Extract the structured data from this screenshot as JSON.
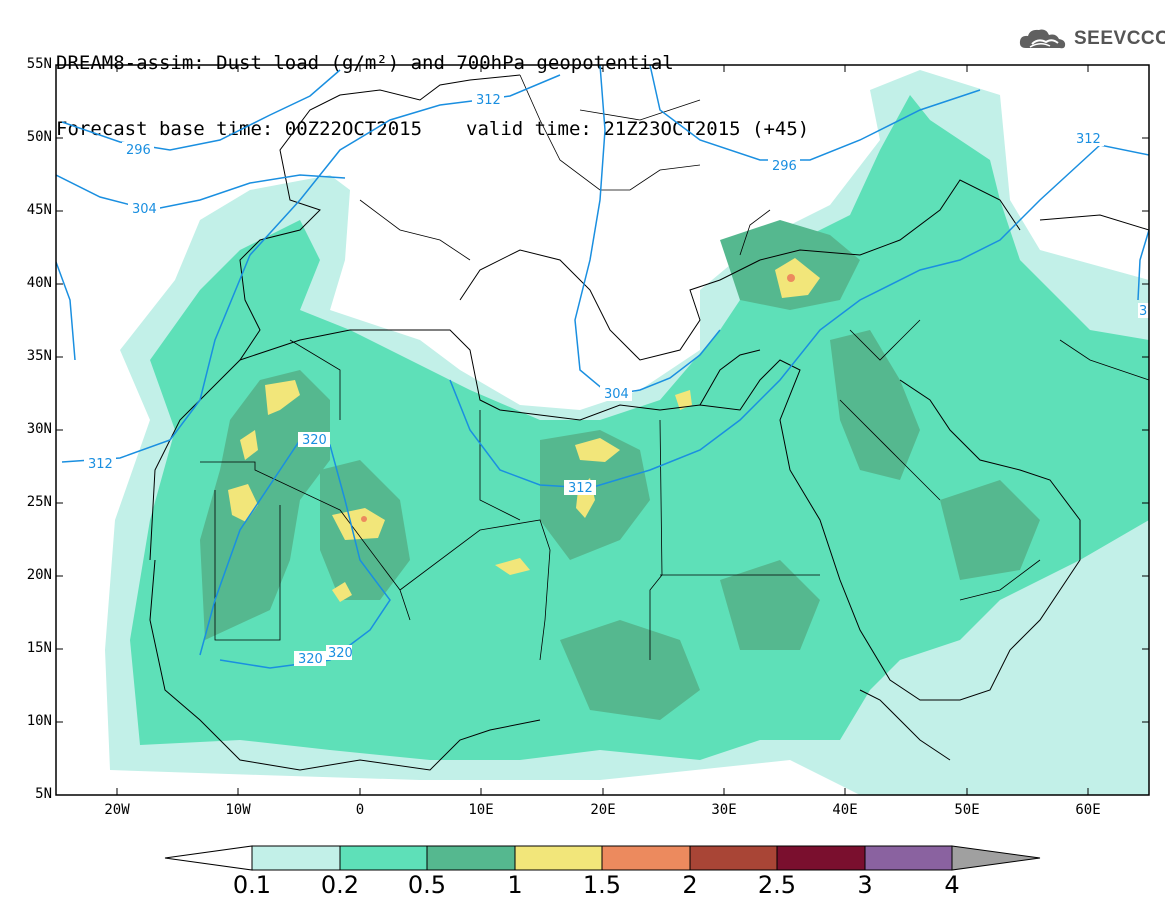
{
  "title": {
    "line1": "DREAM8-assim: Dust load (g/m²) and 700hPa geopotential",
    "base_time": "Forecast base time: 00Z22OCT2015",
    "valid_time": "valid time: 21Z23OCT2015 (+45)"
  },
  "logo": {
    "icon": "cloud-icon",
    "text": "SEEVCCC"
  },
  "map": {
    "lat_labels": [
      "55N",
      "50N",
      "45N",
      "40N",
      "35N",
      "30N",
      "25N",
      "20N",
      "15N",
      "10N",
      "5N"
    ],
    "lon_labels": [
      "20W",
      "10W",
      "0",
      "10E",
      "20E",
      "30E",
      "40E",
      "50E",
      "60E"
    ],
    "contour_labels": [
      "296",
      "304",
      "312",
      "320",
      "320",
      "320",
      "312",
      "304",
      "296",
      "312",
      "312",
      "3"
    ],
    "extent": {
      "lon": [
        -25,
        65
      ],
      "lat": [
        5,
        55
      ]
    }
  },
  "colorbar": {
    "ticks": [
      "0.1",
      "0.2",
      "0.5",
      "1",
      "1.5",
      "2",
      "2.5",
      "3",
      "4"
    ],
    "colors": [
      "#ffffff",
      "#c2f0e8",
      "#5ee0b8",
      "#55b88f",
      "#f2e67a",
      "#ec8a5e",
      "#a94536",
      "#7a0f2e",
      "#8a62a0",
      "#a0a0a0"
    ]
  }
}
